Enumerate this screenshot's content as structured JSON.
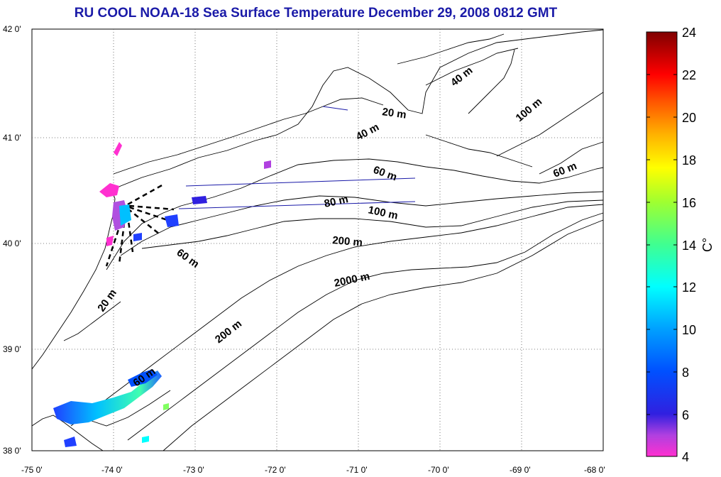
{
  "title": "RU COOL  NOAA-18 Sea Surface Temperature December 29, 2008 0812 GMT",
  "axes": {
    "lon_ticks": [
      "-75 0'",
      "-74 0'",
      "-73 0'",
      "-72 0'",
      "-71 0'",
      "-70 0'",
      "-69 0'",
      "-68 0'"
    ],
    "lat_ticks": [
      "42 0'",
      "41 0'",
      "40 0'",
      "39 0'",
      "38 0'"
    ],
    "lon_range": [
      -75,
      -68
    ],
    "lat_range": [
      38,
      42
    ],
    "grid": true
  },
  "depth_labels": [
    "20 m",
    "40 m",
    "40 m",
    "100 m",
    "60 m",
    "60 m",
    "80 m",
    "100 m",
    "200 m",
    "60 m",
    "2000 m",
    "20 m",
    "200 m",
    "60 m"
  ],
  "colorbar": {
    "ticks": [
      "24",
      "22",
      "20",
      "18",
      "16",
      "14",
      "12",
      "10",
      "8",
      "6",
      "4"
    ],
    "range": [
      4,
      24
    ],
    "unit": "C°",
    "colors": [
      "#ff30d0",
      "#a040e0",
      "#3020e0",
      "#0050ff",
      "#00a0ff",
      "#00ffff",
      "#40ff90",
      "#a0ff30",
      "#ffff00",
      "#ffb000",
      "#ff5000",
      "#ff0000",
      "#c00000",
      "#800000"
    ]
  }
}
